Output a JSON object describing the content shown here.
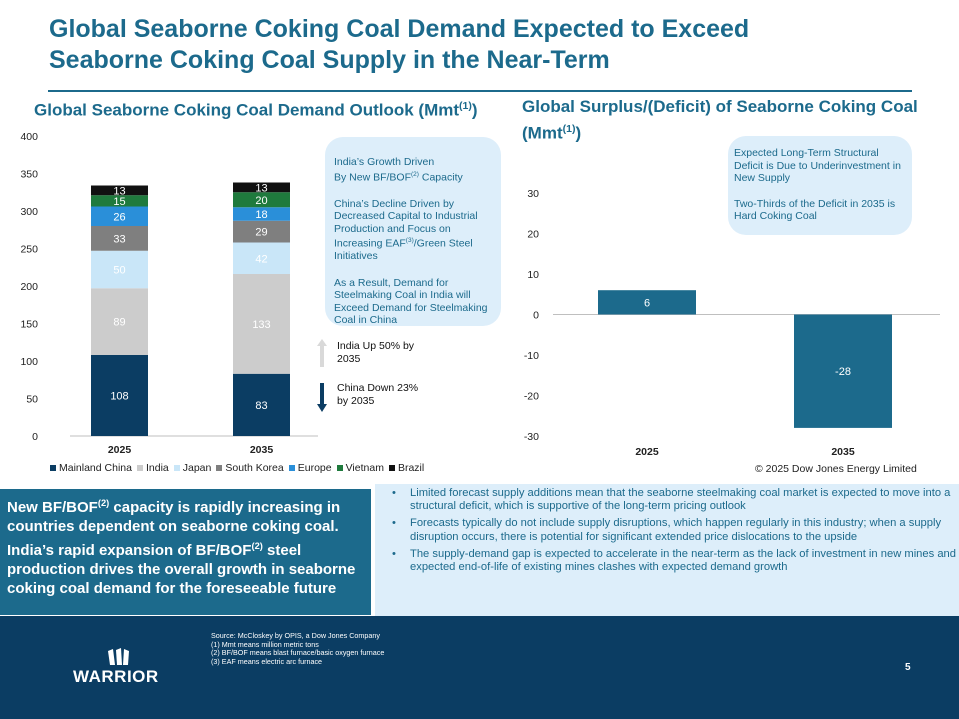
{
  "title_line1": "Global Seaborne Coking Coal Demand Expected to Exceed",
  "title_line2": "Seaborne Coking Coal Supply in the Near-Term",
  "left_chart_title": "Global Seaborne Coking Coal Demand Outlook (Mmt",
  "left_chart_title_sup": "(1)",
  "left_chart_title_end": ")",
  "right_chart_title": "Global Surplus/(Deficit) of Seaborne Coking Coal (Mmt",
  "right_chart_title_sup": "(1)",
  "right_chart_title_end": ")",
  "colors": {
    "brand": "#1c6a8c",
    "navy": "#0b3d63",
    "light_panel": "#ddeefa"
  },
  "chart_data": [
    {
      "type": "bar",
      "stacked": true,
      "title": "Global Seaborne Coking Coal Demand Outlook (Mmt(1))",
      "categories": [
        "2025",
        "2035"
      ],
      "series": [
        {
          "name": "Mainland China",
          "values": [
            108,
            83
          ],
          "color": "#0b3d63",
          "label_color": "#ffffff"
        },
        {
          "name": "India",
          "values": [
            89,
            133
          ],
          "color": "#cccccc",
          "label_color": "#ffffff"
        },
        {
          "name": "Japan",
          "values": [
            50,
            42
          ],
          "color": "#c9e6f8",
          "label_color": "#ffffff"
        },
        {
          "name": "South Korea",
          "values": [
            33,
            29
          ],
          "color": "#7f7f7f",
          "label_color": "#ffffff"
        },
        {
          "name": "Europe",
          "values": [
            26,
            18
          ],
          "color": "#2a8fd9",
          "label_color": "#ffffff"
        },
        {
          "name": "Vietnam",
          "values": [
            15,
            20
          ],
          "color": "#1f7a3d",
          "label_color": "#ffffff"
        },
        {
          "name": "Brazil",
          "values": [
            13,
            13
          ],
          "color": "#111111",
          "label_color": "#ffffff"
        }
      ],
      "ylim": [
        0,
        400
      ],
      "yticks": [
        "0",
        "50",
        "100",
        "150",
        "200",
        "250",
        "300",
        "350",
        "400"
      ],
      "grid": false,
      "legend": "bottom"
    },
    {
      "type": "bar",
      "title": "Global Surplus/(Deficit) of Seaborne Coking Coal (Mmt(1))",
      "categories": [
        "2025",
        "2035"
      ],
      "values": [
        6,
        -28
      ],
      "value_labels": [
        "6",
        "-28"
      ],
      "color": "#1c6a8c",
      "ylim": [
        -30,
        30
      ],
      "yticks": [
        "-30",
        "-20",
        "-10",
        "0",
        "10",
        "20",
        "30"
      ],
      "grid": false
    }
  ],
  "legend_labels": [
    "Mainland China",
    "India",
    "Japan",
    "South Korea",
    "Europe",
    "Vietnam",
    "Brazil"
  ],
  "callout_left": {
    "p1_a": "India’s Growth Driven",
    "p1_b": "By New BF/BOF",
    "p1_sup": "(2)",
    "p1_c": " Capacity",
    "p2_a": "China’s Decline Driven by Decreased Capital to Industrial Production and Focus on Increasing EAF",
    "p2_sup": "(3)",
    "p2_b": "/Green Steel Initiatives",
    "p3": "As a Result, Demand for Steelmaking Coal in India will Exceed Demand for Steelmaking Coal in China"
  },
  "arrow_up_text": "India Up 50% by 2035",
  "arrow_down_text": "China Down 23% by 2035",
  "callout_right": {
    "p1": "Expected Long-Term Structural Deficit is Due to Underinvestment in New Supply",
    "p2": "Two-Thirds of the Deficit in 2035 is Hard Coking Coal"
  },
  "copyright": "© 2025 Dow Jones Energy Limited",
  "bottom_left": {
    "t1": "New BF/BOF",
    "sup1": "(2)",
    "t2": " capacity is rapidly increasing in countries dependent on seaborne coking coal. India’s rapid expansion of BF/BOF",
    "sup2": "(2)",
    "t3": " steel production drives the overall growth in seaborne coking coal demand for the foreseeable future"
  },
  "bullets": [
    "Limited forecast supply additions mean that the seaborne steelmaking coal market is expected to move into a structural deficit, which is supportive of the long-term pricing outlook",
    "Forecasts typically do not include supply disruptions, which happen regularly in this industry; when a supply disruption occurs, there is potential for significant extended price dislocations to the upside",
    "The supply-demand gap is expected to accelerate in the near-term as the lack of investment in new mines and expected end-of-life of existing mines clashes with expected demand growth"
  ],
  "footer": {
    "source_lines": [
      "Source: McCloskey by OPIS, a Dow Jones Company",
      "(1) Mmt means million metric tons",
      "(2) BF/BOF means blast furnace/basic oxygen furnace",
      "(3) EAF means electric arc furnace"
    ],
    "logo_text": "WARRIOR",
    "page_number": "5"
  }
}
